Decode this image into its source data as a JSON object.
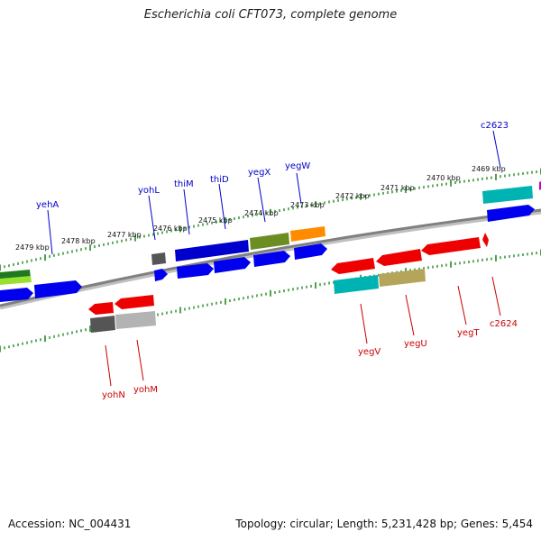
{
  "title": "Escherichia coli CFT073, complete genome",
  "footer": {
    "accession": "Accession: NC_004431",
    "summary": "Topology: circular; Length: 5,231,428 bp; Genes: 5,454"
  },
  "scale": {
    "ticks": [
      {
        "label": "2479 kbp"
      },
      {
        "label": "2478 kbp"
      },
      {
        "label": "2477 kbp"
      },
      {
        "label": "2476 kbp"
      },
      {
        "label": "2475 kbp"
      },
      {
        "label": "2474 kbp"
      },
      {
        "label": "2473 kbp"
      },
      {
        "label": "2472 kbp"
      },
      {
        "label": "2471 kbp"
      },
      {
        "label": "2470 kbp"
      },
      {
        "label": "2469 kbp"
      }
    ]
  },
  "genes": {
    "forward": [
      {
        "name": "yehA",
        "color": "#0000cc"
      },
      {
        "name": "yohL",
        "color": "#0000cc"
      },
      {
        "name": "thiM",
        "color": "#0000cc"
      },
      {
        "name": "thiD",
        "color": "#0000cc"
      },
      {
        "name": "yegX",
        "color": "#0000cc"
      },
      {
        "name": "yegW",
        "color": "#0000cc"
      },
      {
        "name": "c2623",
        "color": "#0000cc"
      }
    ],
    "reverse": [
      {
        "name": "yohN",
        "color": "#cc0000"
      },
      {
        "name": "yohM",
        "color": "#cc0000"
      },
      {
        "name": "yegV",
        "color": "#cc0000"
      },
      {
        "name": "yegU",
        "color": "#cc0000"
      },
      {
        "name": "yegT",
        "color": "#cc0000"
      },
      {
        "name": "c2624",
        "color": "#cc0000"
      }
    ]
  },
  "colors": {
    "backbone": "#808080",
    "tick": "#228B22",
    "forward_label": "#0000cc",
    "reverse_label": "#cc0000"
  }
}
